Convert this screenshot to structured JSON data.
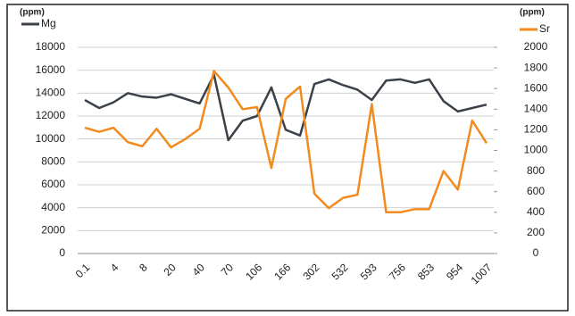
{
  "chart_data": {
    "type": "line",
    "y_label": "(ppm)",
    "y2_label": "(ppm)",
    "categories": [
      "0.1",
      null,
      "4",
      null,
      "8",
      null,
      "20",
      null,
      "40",
      null,
      "70",
      null,
      "106",
      null,
      "166",
      null,
      "302",
      null,
      "532",
      null,
      "593",
      null,
      "756",
      null,
      "853",
      null,
      "954",
      null,
      "1007"
    ],
    "series": [
      {
        "name": "Mg",
        "color": "#3b4149",
        "values": [
          13400,
          12700,
          13200,
          14000,
          13700,
          13600,
          13900,
          13500,
          13100,
          15600,
          9900,
          11600,
          12000,
          14500,
          10800,
          10300,
          14800,
          15200,
          14700,
          14300,
          13400,
          15100,
          15200,
          14900,
          15200,
          13300,
          12400,
          12700,
          13000
        ]
      },
      {
        "name": "Sr",
        "color": "#f28a1e",
        "axis": "y2",
        "values": [
          1220,
          1180,
          1220,
          1080,
          1040,
          1210,
          1030,
          1110,
          1210,
          1770,
          1610,
          1400,
          1420,
          830,
          1500,
          1620,
          580,
          440,
          540,
          570,
          1450,
          400,
          400,
          430,
          430,
          800,
          620,
          1290,
          1070
        ]
      }
    ],
    "ylim": [
      0,
      18000
    ],
    "yticks": [
      0,
      2000,
      4000,
      6000,
      8000,
      10000,
      12000,
      14000,
      16000,
      18000
    ],
    "y2lim": [
      0,
      2000
    ],
    "y2ticks": [
      0,
      200,
      400,
      600,
      800,
      1000,
      1200,
      1400,
      1600,
      1800,
      2000
    ],
    "grid": true
  }
}
